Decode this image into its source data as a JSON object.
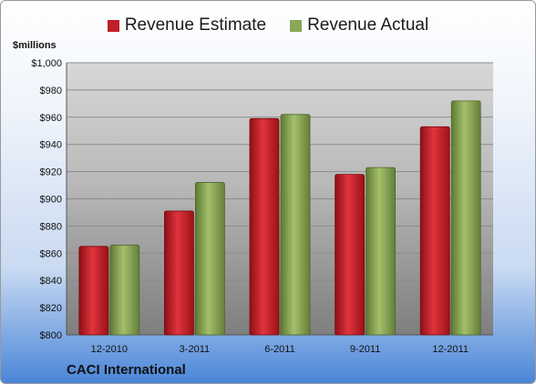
{
  "chart_data": {
    "type": "bar",
    "categories": [
      "12-2010",
      "3-2011",
      "6-2011",
      "9-2011",
      "12-2011"
    ],
    "series": [
      {
        "name": "Revenue Estimate",
        "values": [
          865,
          891,
          959,
          918,
          953
        ],
        "color": "#c0202a"
      },
      {
        "name": "Revenue Actual",
        "values": [
          866,
          912,
          962,
          923,
          972
        ],
        "color": "#8aa858"
      }
    ],
    "ylabel": "$millions",
    "ylim": [
      800,
      1000
    ],
    "yticks": [
      "$800",
      "$820",
      "$840",
      "$860",
      "$880",
      "$900",
      "$920",
      "$940",
      "$960",
      "$980",
      "$1,000"
    ],
    "grid": true,
    "legend": "top-center"
  },
  "footer": {
    "company": "CACI International"
  }
}
